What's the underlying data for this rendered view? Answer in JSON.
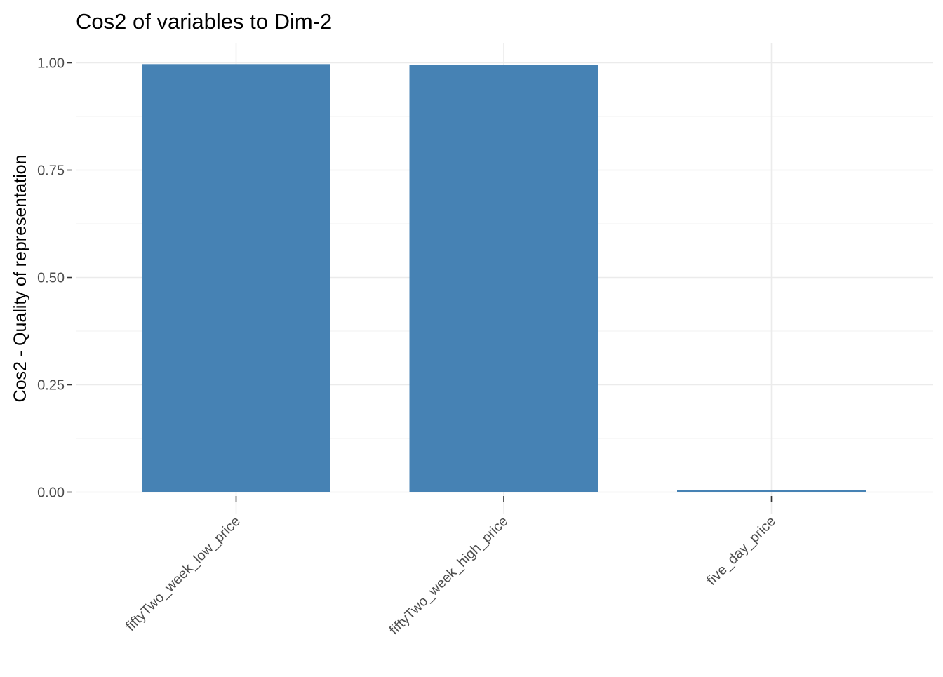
{
  "chart_data": {
    "type": "bar",
    "title": "Cos2 of variables to Dim-2",
    "xlabel": "",
    "ylabel": "Cos2 - Quality of representation",
    "categories": [
      "fiftyTwo_week_low_price",
      "fiftyTwo_week_high_price",
      "five_day_price"
    ],
    "values": [
      0.997,
      0.995,
      0.005
    ],
    "ylim": [
      0,
      1.045
    ],
    "yticks": [
      "0.00",
      "0.25",
      "0.50",
      "0.75",
      "1.00"
    ],
    "bar_color": "#4682B4",
    "grid": true,
    "legend": "none"
  }
}
